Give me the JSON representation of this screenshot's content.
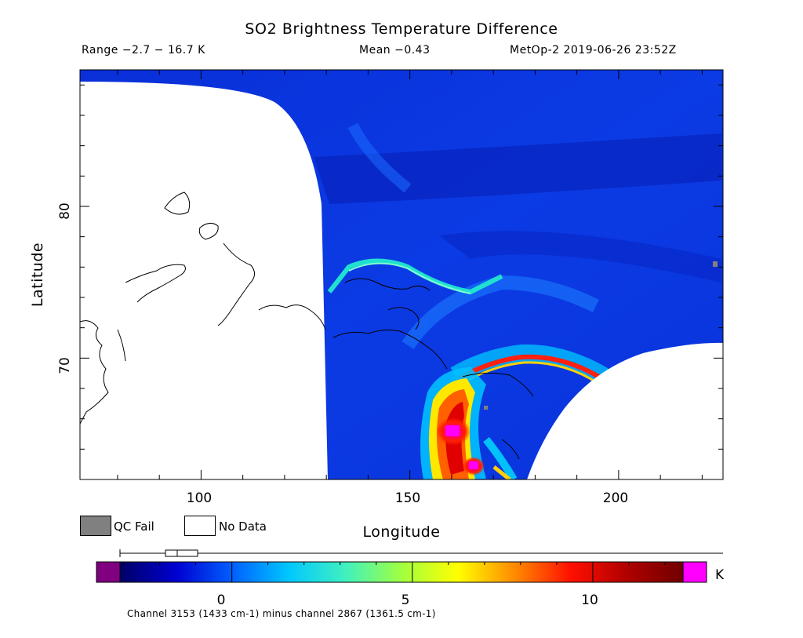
{
  "header": {
    "title": "SO2 Brightness Temperature Difference",
    "range": "Range −2.7 − 16.7 K",
    "mean": "Mean −0.43",
    "instrument": "MetOp-2 2019-06-26 23:52Z"
  },
  "legend": {
    "qc_fail": "QC Fail",
    "no_data": "No Data",
    "qc_color": "#808080",
    "no_data_color": "#ffffff"
  },
  "colorbar": {
    "unit": "K",
    "ticks": [
      "0",
      "5",
      "10"
    ],
    "range": [
      -3.1,
      12.5
    ],
    "under_color": "#800080",
    "over_color": "#ff00ff",
    "stops": [
      "#000066",
      "#0000d0",
      "#0060ff",
      "#00c8ff",
      "#40f0c0",
      "#a0ff40",
      "#ffff00",
      "#ff8c00",
      "#ff1000",
      "#b00000",
      "#700000"
    ]
  },
  "caption": "Channel 3153 (1433 cm-1) minus channel 2867 (1361.5 cm-1)",
  "chart_data": {
    "type": "heatmap",
    "title": "SO2 Brightness Temperature Difference",
    "xlabel": "Longitude",
    "ylabel": "Latitude",
    "xlim": [
      71,
      225
    ],
    "ylim": [
      62,
      89
    ],
    "x_ticks": [
      "100",
      "150",
      "200"
    ],
    "y_ticks": [
      "70",
      "80"
    ],
    "unit": "K",
    "value_range": [
      -2.7,
      16.7
    ],
    "mean": -0.43,
    "background_value": -0.5,
    "features": [
      {
        "name": "plume core",
        "lon": 161,
        "lat": 65.5,
        "value": 16
      },
      {
        "name": "plume core",
        "lon": 163.5,
        "lat": 63,
        "value": 16
      },
      {
        "name": "plume arc",
        "lon": 170,
        "lat": 70.2,
        "value": 10
      },
      {
        "name": "plume interior",
        "lon": 162,
        "lat": 66.5,
        "value": 6
      },
      {
        "name": "streak",
        "lon": 145,
        "lat": 76.5,
        "value": 3
      }
    ]
  }
}
